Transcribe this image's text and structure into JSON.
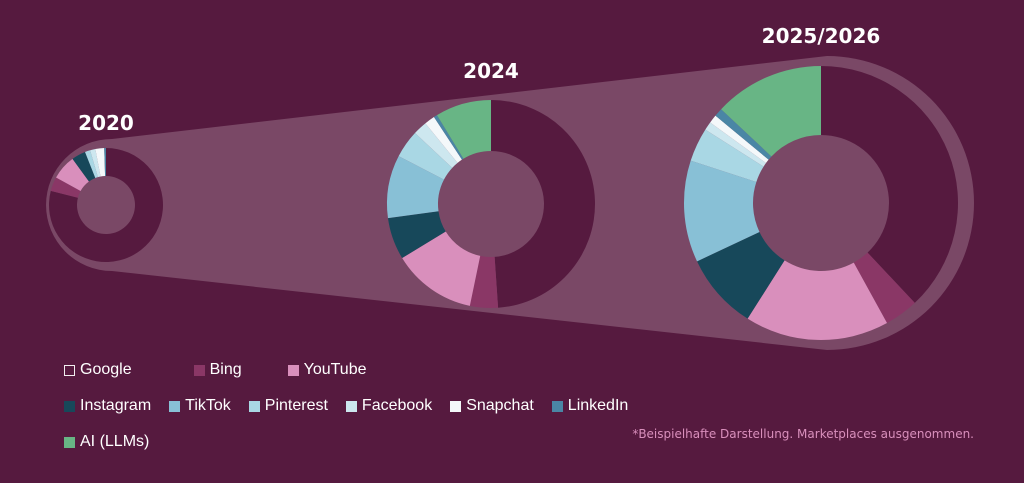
{
  "chart_data": {
    "type": "pie",
    "variant": "donut",
    "categories": [
      "Google",
      "Bing",
      "YouTube",
      "Instagram",
      "TikTok",
      "Pinterest",
      "Facebook",
      "Snapchat",
      "LinkedIn",
      "AI (LLMs)"
    ],
    "colors": [
      "#561a3f",
      "#8a3766",
      "#d98fbc",
      "#17485a",
      "#88c0d6",
      "#a9d7e4",
      "#cde7ef",
      "#f4f8fa",
      "#4a86a5",
      "#68b585"
    ],
    "outline_color": "#f2eef0",
    "series": [
      {
        "name": "2020",
        "values": [
          79,
          4,
          7,
          4,
          0,
          1.5,
          1.5,
          2.5,
          0.5,
          0
        ]
      },
      {
        "name": "2024",
        "values": [
          45,
          4,
          12,
          6,
          9,
          4,
          2,
          1.5,
          0.5,
          8
        ]
      },
      {
        "name": "2025/2026",
        "values": [
          38,
          4,
          17,
          9,
          12,
          4,
          1,
          1,
          1,
          13
        ]
      }
    ]
  },
  "footnote": "*Beispielhafte Darstellung. Marketplaces ausgenommen."
}
